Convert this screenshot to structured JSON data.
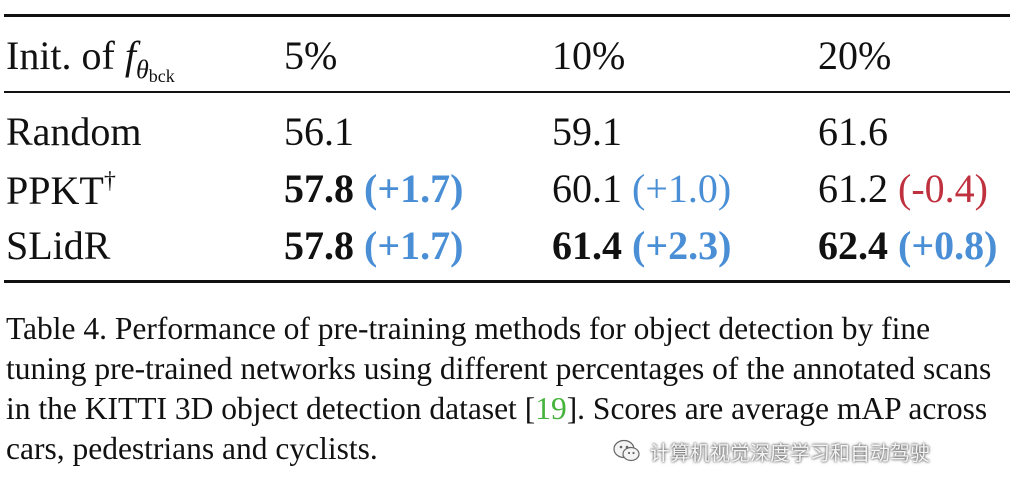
{
  "table": {
    "header": {
      "init_label": "Init. of ",
      "f_symbol": "f",
      "sub_theta": "θ",
      "sub_bck": "bck",
      "col1": "5%",
      "col2": "10%",
      "col3": "20%"
    },
    "rows": [
      {
        "method": "Random",
        "cells": [
          {
            "value": "56.1",
            "delta": ""
          },
          {
            "value": "59.1",
            "delta": ""
          },
          {
            "value": "61.6",
            "delta": ""
          }
        ]
      },
      {
        "method": "PPKT",
        "mark": "†",
        "cells": [
          {
            "value": "57.8",
            "delta": "(+1.7)"
          },
          {
            "value": "60.1",
            "delta": "(+1.0)"
          },
          {
            "value": "61.2",
            "delta": "(-0.4)"
          }
        ]
      },
      {
        "method": "SLidR",
        "cells": [
          {
            "value": "57.8",
            "delta": "(+1.7)"
          },
          {
            "value": "61.4",
            "delta": "(+2.3)"
          },
          {
            "value": "62.4",
            "delta": "(+0.8)"
          }
        ]
      }
    ]
  },
  "caption": {
    "part1": "Table 4. Performance of pre-training methods for object detection by fine tuning pre-trained networks using different percentages of the annotated scans in the KITTI 3D object detection dataset [",
    "cite": "19",
    "part2": "]. Scores are average mAP across cars, pedestrians and cyclists."
  },
  "watermark": {
    "text": "计算机视觉深度学习和自动驾驶",
    "icon": "wechat-icon"
  },
  "colors": {
    "positive": "#4a8fd6",
    "negative": "#c0313f",
    "citation": "#46b43c"
  }
}
